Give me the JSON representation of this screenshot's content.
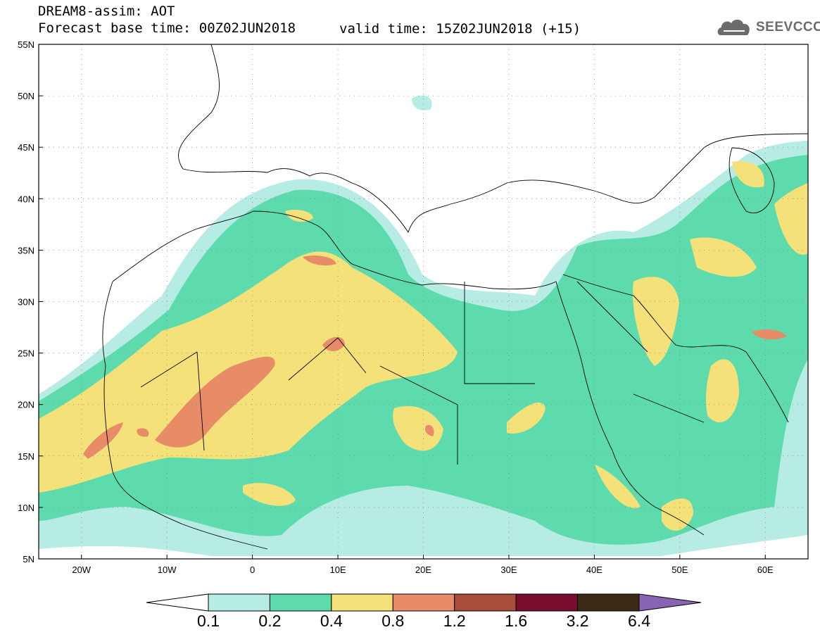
{
  "title": {
    "line1": "DREAM8-assim: AOT",
    "line2": "Forecast base time: 00Z02JUN2018",
    "valid": "valid time: 15Z02JUN2018 (+15)"
  },
  "logo": {
    "text": "SEEVCCC",
    "icon": "cloud-icon"
  },
  "map": {
    "lon_range": [
      -25,
      65
    ],
    "lat_range": [
      5,
      55
    ],
    "lon_ticks": [
      "20W",
      "10W",
      "0",
      "10E",
      "20E",
      "30E",
      "40E",
      "50E",
      "60E"
    ],
    "lat_ticks": [
      "55N",
      "50N",
      "45N",
      "40N",
      "35N",
      "30N",
      "25N",
      "20N",
      "15N",
      "10N",
      "5N"
    ]
  },
  "colorbar": {
    "levels": [
      "0.1",
      "0.2",
      "0.4",
      "0.8",
      "1.2",
      "1.6",
      "3.2",
      "6.4"
    ],
    "colors": [
      "#ffffff",
      "#b6ece4",
      "#5ddbac",
      "#f4e17a",
      "#e88c68",
      "#a84c3c",
      "#7a0c2c",
      "#3c2a16",
      "#8a64b4"
    ]
  }
}
